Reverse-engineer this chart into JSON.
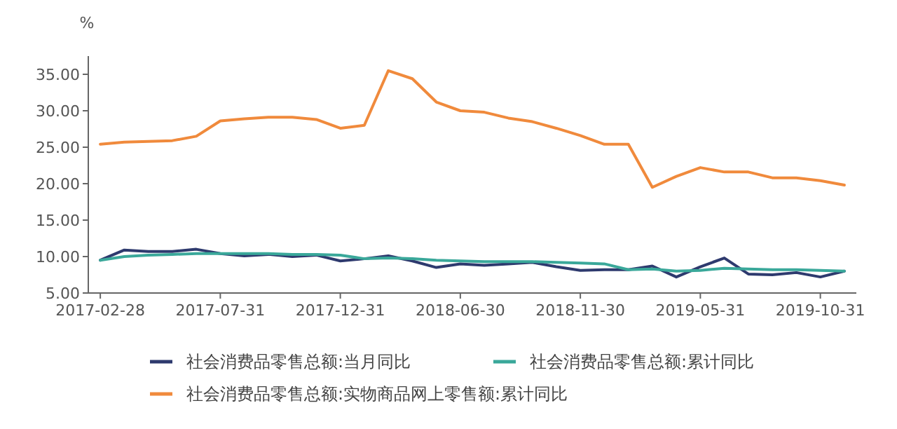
{
  "chart_data": {
    "type": "line",
    "ylabel": "%",
    "categories": [
      "2017-02-28",
      null,
      null,
      null,
      null,
      "2017-07-31",
      null,
      null,
      null,
      null,
      "2017-12-31",
      null,
      null,
      null,
      null,
      "2018-06-30",
      null,
      null,
      null,
      null,
      "2018-11-30",
      null,
      null,
      null,
      null,
      "2019-05-31",
      null,
      null,
      null,
      null,
      "2019-10-31",
      null
    ],
    "series": [
      {
        "name": "社会消费品零售总额:当月同比",
        "color": "#2e3a6e",
        "values": [
          9.5,
          10.9,
          10.7,
          10.7,
          11.0,
          10.4,
          10.1,
          10.3,
          10.0,
          10.2,
          9.4,
          9.7,
          10.1,
          9.4,
          8.5,
          9.0,
          8.8,
          9.0,
          9.2,
          8.6,
          8.1,
          8.2,
          8.2,
          8.7,
          7.2,
          8.6,
          9.8,
          7.6,
          7.5,
          7.8,
          7.2,
          8.0
        ]
      },
      {
        "name": "社会消费品零售总额:累计同比",
        "color": "#3aa89a",
        "values": [
          9.5,
          10.0,
          10.2,
          10.3,
          10.4,
          10.4,
          10.4,
          10.4,
          10.3,
          10.3,
          10.2,
          9.7,
          9.8,
          9.7,
          9.5,
          9.4,
          9.3,
          9.3,
          9.3,
          9.2,
          9.1,
          9.0,
          8.2,
          8.3,
          8.0,
          8.1,
          8.4,
          8.3,
          8.2,
          8.2,
          8.1,
          8.0
        ]
      },
      {
        "name": "社会消费品零售总额:实物商品网上零售额:累计同比",
        "color": "#f08a3c",
        "values": [
          25.4,
          25.7,
          25.8,
          25.9,
          26.5,
          28.6,
          28.9,
          29.1,
          29.1,
          28.8,
          27.6,
          28.0,
          35.5,
          34.4,
          31.2,
          30.0,
          29.8,
          29.0,
          28.5,
          27.6,
          26.6,
          25.4,
          25.4,
          19.5,
          21.0,
          22.2,
          21.6,
          21.6,
          20.8,
          20.8,
          20.4,
          19.8
        ]
      }
    ],
    "ylim": [
      5,
      37.5
    ],
    "yticks": [
      {
        "value": 5,
        "label": "5.00"
      },
      {
        "value": 10,
        "label": "10.00"
      },
      {
        "value": 15,
        "label": "15.00"
      },
      {
        "value": 20,
        "label": "20.00"
      },
      {
        "value": 25,
        "label": "25.00"
      },
      {
        "value": 30,
        "label": "30.00"
      },
      {
        "value": 35,
        "label": "35.00"
      }
    ],
    "grid": false,
    "legend": "bottom"
  }
}
